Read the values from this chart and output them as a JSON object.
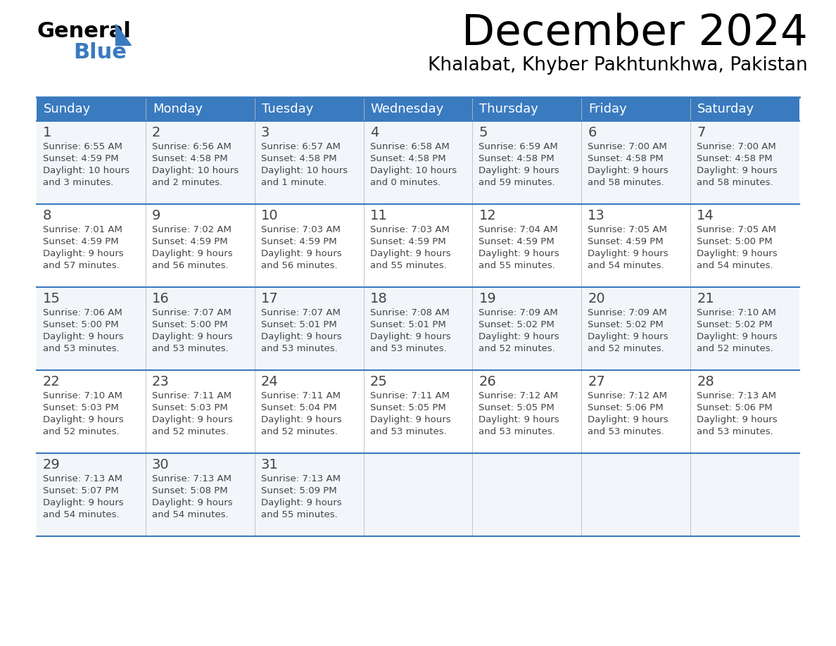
{
  "title": "December 2024",
  "subtitle": "Khalabat, Khyber Pakhtunkhwa, Pakistan",
  "header_color": "#3a7abf",
  "header_text_color": "#ffffff",
  "cell_bg_even": "#f2f6fa",
  "cell_bg_odd": "#ffffff",
  "border_color": "#3a7abf",
  "text_color": "#444444",
  "day_headers": [
    "Sunday",
    "Monday",
    "Tuesday",
    "Wednesday",
    "Thursday",
    "Friday",
    "Saturday"
  ],
  "weeks": [
    [
      {
        "day": 1,
        "sunrise": "6:55 AM",
        "sunset": "4:59 PM",
        "daylight_line1": "10 hours",
        "daylight_line2": "and 3 minutes."
      },
      {
        "day": 2,
        "sunrise": "6:56 AM",
        "sunset": "4:58 PM",
        "daylight_line1": "10 hours",
        "daylight_line2": "and 2 minutes."
      },
      {
        "day": 3,
        "sunrise": "6:57 AM",
        "sunset": "4:58 PM",
        "daylight_line1": "10 hours",
        "daylight_line2": "and 1 minute."
      },
      {
        "day": 4,
        "sunrise": "6:58 AM",
        "sunset": "4:58 PM",
        "daylight_line1": "10 hours",
        "daylight_line2": "and 0 minutes."
      },
      {
        "day": 5,
        "sunrise": "6:59 AM",
        "sunset": "4:58 PM",
        "daylight_line1": "9 hours",
        "daylight_line2": "and 59 minutes."
      },
      {
        "day": 6,
        "sunrise": "7:00 AM",
        "sunset": "4:58 PM",
        "daylight_line1": "9 hours",
        "daylight_line2": "and 58 minutes."
      },
      {
        "day": 7,
        "sunrise": "7:00 AM",
        "sunset": "4:58 PM",
        "daylight_line1": "9 hours",
        "daylight_line2": "and 58 minutes."
      }
    ],
    [
      {
        "day": 8,
        "sunrise": "7:01 AM",
        "sunset": "4:59 PM",
        "daylight_line1": "9 hours",
        "daylight_line2": "and 57 minutes."
      },
      {
        "day": 9,
        "sunrise": "7:02 AM",
        "sunset": "4:59 PM",
        "daylight_line1": "9 hours",
        "daylight_line2": "and 56 minutes."
      },
      {
        "day": 10,
        "sunrise": "7:03 AM",
        "sunset": "4:59 PM",
        "daylight_line1": "9 hours",
        "daylight_line2": "and 56 minutes."
      },
      {
        "day": 11,
        "sunrise": "7:03 AM",
        "sunset": "4:59 PM",
        "daylight_line1": "9 hours",
        "daylight_line2": "and 55 minutes."
      },
      {
        "day": 12,
        "sunrise": "7:04 AM",
        "sunset": "4:59 PM",
        "daylight_line1": "9 hours",
        "daylight_line2": "and 55 minutes."
      },
      {
        "day": 13,
        "sunrise": "7:05 AM",
        "sunset": "4:59 PM",
        "daylight_line1": "9 hours",
        "daylight_line2": "and 54 minutes."
      },
      {
        "day": 14,
        "sunrise": "7:05 AM",
        "sunset": "5:00 PM",
        "daylight_line1": "9 hours",
        "daylight_line2": "and 54 minutes."
      }
    ],
    [
      {
        "day": 15,
        "sunrise": "7:06 AM",
        "sunset": "5:00 PM",
        "daylight_line1": "9 hours",
        "daylight_line2": "and 53 minutes."
      },
      {
        "day": 16,
        "sunrise": "7:07 AM",
        "sunset": "5:00 PM",
        "daylight_line1": "9 hours",
        "daylight_line2": "and 53 minutes."
      },
      {
        "day": 17,
        "sunrise": "7:07 AM",
        "sunset": "5:01 PM",
        "daylight_line1": "9 hours",
        "daylight_line2": "and 53 minutes."
      },
      {
        "day": 18,
        "sunrise": "7:08 AM",
        "sunset": "5:01 PM",
        "daylight_line1": "9 hours",
        "daylight_line2": "and 53 minutes."
      },
      {
        "day": 19,
        "sunrise": "7:09 AM",
        "sunset": "5:02 PM",
        "daylight_line1": "9 hours",
        "daylight_line2": "and 52 minutes."
      },
      {
        "day": 20,
        "sunrise": "7:09 AM",
        "sunset": "5:02 PM",
        "daylight_line1": "9 hours",
        "daylight_line2": "and 52 minutes."
      },
      {
        "day": 21,
        "sunrise": "7:10 AM",
        "sunset": "5:02 PM",
        "daylight_line1": "9 hours",
        "daylight_line2": "and 52 minutes."
      }
    ],
    [
      {
        "day": 22,
        "sunrise": "7:10 AM",
        "sunset": "5:03 PM",
        "daylight_line1": "9 hours",
        "daylight_line2": "and 52 minutes."
      },
      {
        "day": 23,
        "sunrise": "7:11 AM",
        "sunset": "5:03 PM",
        "daylight_line1": "9 hours",
        "daylight_line2": "and 52 minutes."
      },
      {
        "day": 24,
        "sunrise": "7:11 AM",
        "sunset": "5:04 PM",
        "daylight_line1": "9 hours",
        "daylight_line2": "and 52 minutes."
      },
      {
        "day": 25,
        "sunrise": "7:11 AM",
        "sunset": "5:05 PM",
        "daylight_line1": "9 hours",
        "daylight_line2": "and 53 minutes."
      },
      {
        "day": 26,
        "sunrise": "7:12 AM",
        "sunset": "5:05 PM",
        "daylight_line1": "9 hours",
        "daylight_line2": "and 53 minutes."
      },
      {
        "day": 27,
        "sunrise": "7:12 AM",
        "sunset": "5:06 PM",
        "daylight_line1": "9 hours",
        "daylight_line2": "and 53 minutes."
      },
      {
        "day": 28,
        "sunrise": "7:13 AM",
        "sunset": "5:06 PM",
        "daylight_line1": "9 hours",
        "daylight_line2": "and 53 minutes."
      }
    ],
    [
      {
        "day": 29,
        "sunrise": "7:13 AM",
        "sunset": "5:07 PM",
        "daylight_line1": "9 hours",
        "daylight_line2": "and 54 minutes."
      },
      {
        "day": 30,
        "sunrise": "7:13 AM",
        "sunset": "5:08 PM",
        "daylight_line1": "9 hours",
        "daylight_line2": "and 54 minutes."
      },
      {
        "day": 31,
        "sunrise": "7:13 AM",
        "sunset": "5:09 PM",
        "daylight_line1": "9 hours",
        "daylight_line2": "and 55 minutes."
      },
      null,
      null,
      null,
      null
    ]
  ],
  "fig_width": 11.88,
  "fig_height": 9.18,
  "dpi": 100
}
